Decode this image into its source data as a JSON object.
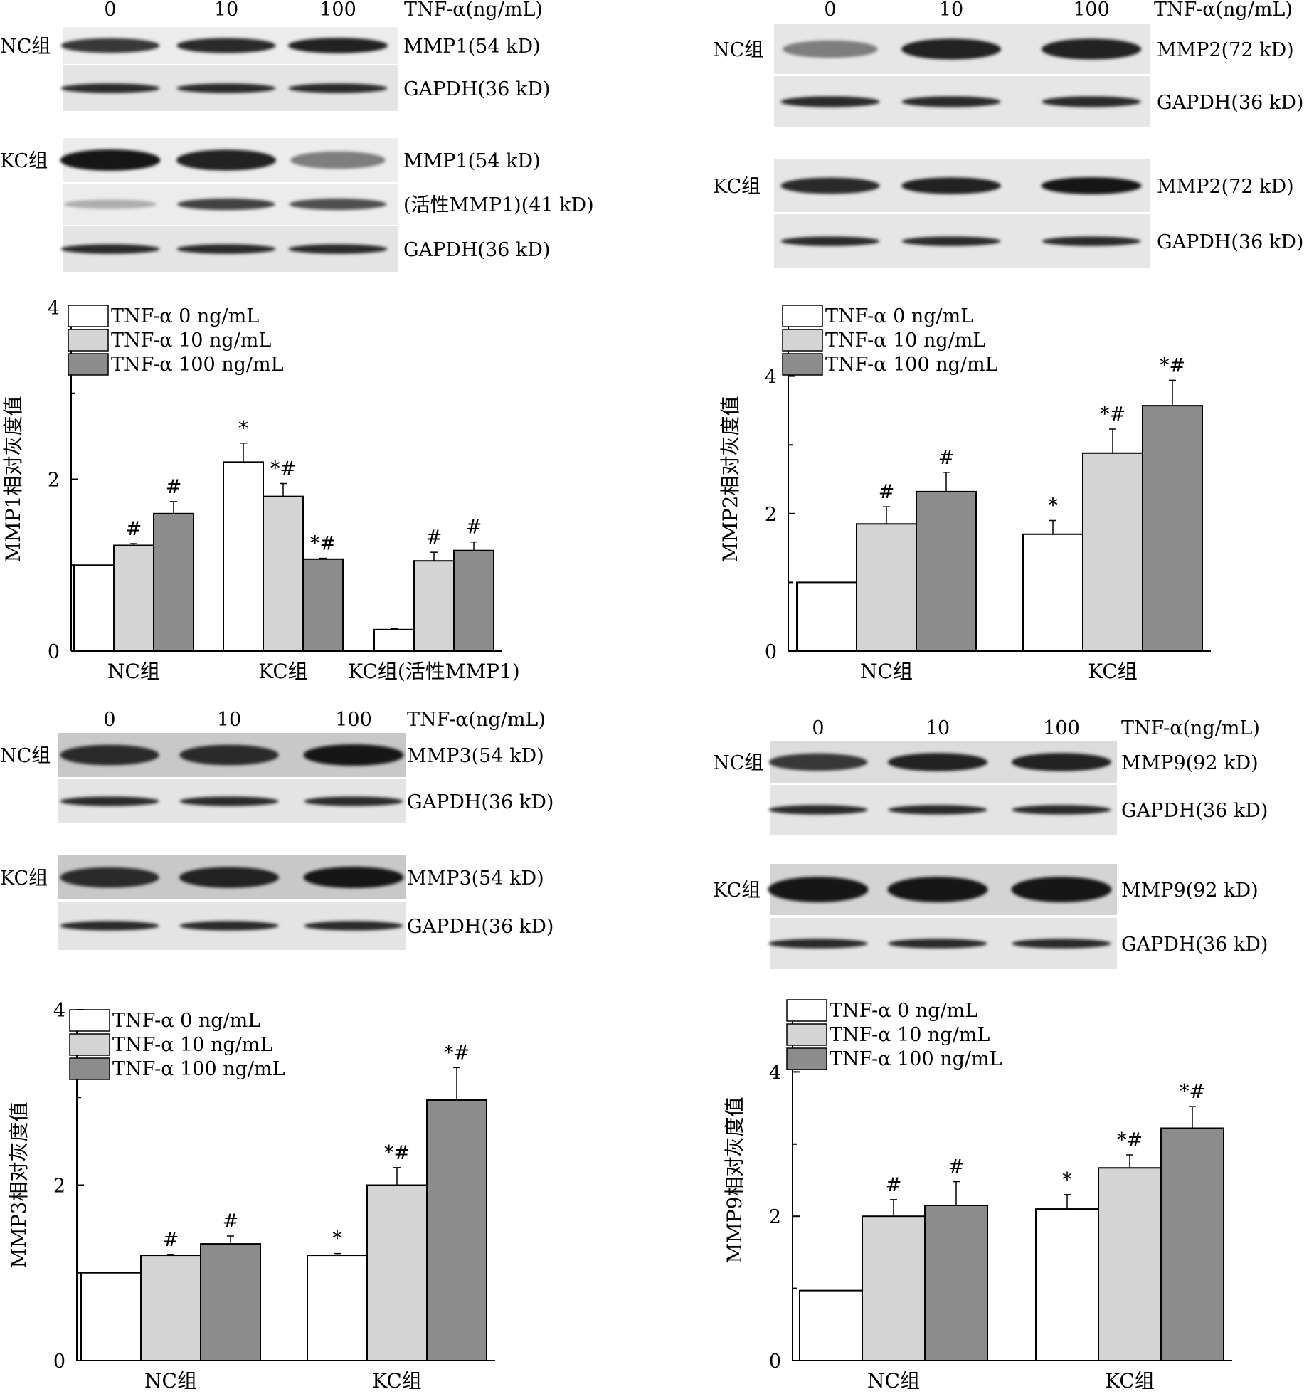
{
  "colors": {
    "tnf0": "#ffffff",
    "tnf10": "#d4d4d4",
    "tnf100": "#8c8c8c",
    "axis": "#000000"
  },
  "panels": [
    {
      "id": "mmp1",
      "lanes": [
        "0",
        "10",
        "100"
      ],
      "treatment_label": "TNF-α(ng/mL)",
      "blocks": [
        {
          "group": "NC组",
          "rows": [
            {
              "label": "MMP1(54 kD)",
              "intensity": [
                0.85,
                0.9,
                0.95
              ],
              "bg": "#ececec"
            },
            {
              "label": "GAPDH(36 kD)",
              "intensity": [
                0.9,
                0.9,
                0.9
              ],
              "bg": "#e4e4e4"
            }
          ]
        },
        {
          "group": "KC组",
          "rows": [
            {
              "label": "MMP1(54 kD)",
              "intensity": [
                1.0,
                0.95,
                0.55
              ],
              "bg": "#ececec"
            },
            {
              "label": "(活性MMP1)(41 kD)",
              "intensity": [
                0.35,
                0.8,
                0.75
              ],
              "bg": "#ececec"
            },
            {
              "label": "GAPDH(36 kD)",
              "intensity": [
                0.9,
                0.9,
                0.9
              ],
              "bg": "#e4e4e4"
            }
          ]
        }
      ]
    },
    {
      "id": "mmp2",
      "lanes": [
        "0",
        "10",
        "100"
      ],
      "treatment_label": "TNF-α(ng/mL)",
      "blocks": [
        {
          "group": "NC组",
          "rows": [
            {
              "label": "MMP2(72 kD)",
              "intensity": [
                0.55,
                0.95,
                0.95
              ],
              "bg": "#e6e6e6"
            },
            {
              "label": "GAPDH(36 kD)",
              "intensity": [
                0.9,
                0.9,
                0.9
              ],
              "bg": "#e6e6e6"
            }
          ]
        },
        {
          "group": "KC组",
          "rows": [
            {
              "label": "MMP2(72 kD)",
              "intensity": [
                0.9,
                0.95,
                1.0
              ],
              "bg": "#e6e6e6"
            },
            {
              "label": "GAPDH(36 kD)",
              "intensity": [
                0.9,
                0.9,
                0.9
              ],
              "bg": "#e6e6e6"
            }
          ]
        }
      ]
    },
    {
      "id": "mmp3",
      "lanes": [
        "0",
        "10",
        "100"
      ],
      "treatment_label": "TNF-α(ng/mL)",
      "blocks": [
        {
          "group": "NC组",
          "rows": [
            {
              "label": "MMP3(54 kD)",
              "intensity": [
                0.9,
                0.9,
                1.0
              ],
              "bg": "#c8c8c8"
            },
            {
              "label": "GAPDH(36 kD)",
              "intensity": [
                0.9,
                0.9,
                0.9
              ],
              "bg": "#e4e4e4"
            }
          ]
        },
        {
          "group": "KC组",
          "rows": [
            {
              "label": "MMP3(54 kD)",
              "intensity": [
                0.9,
                0.95,
                1.0
              ],
              "bg": "#c8c8c8"
            },
            {
              "label": "GAPDH(36 kD)",
              "intensity": [
                0.9,
                0.9,
                0.9
              ],
              "bg": "#e4e4e4"
            }
          ]
        }
      ]
    },
    {
      "id": "mmp9",
      "lanes": [
        "0",
        "10",
        "100"
      ],
      "treatment_label": "TNF-α(ng/mL)",
      "blocks": [
        {
          "group": "NC组",
          "rows": [
            {
              "label": "MMP9(92 kD)",
              "intensity": [
                0.85,
                0.95,
                0.95
              ],
              "bg": "#dcdcdc"
            },
            {
              "label": "GAPDH(36 kD)",
              "intensity": [
                0.9,
                0.9,
                0.9
              ],
              "bg": "#e4e4e4"
            }
          ]
        },
        {
          "group": "KC组",
          "rows": [
            {
              "label": "MMP9(92 kD)",
              "intensity": [
                1.0,
                1.0,
                1.0
              ],
              "bg": "#d4d4d4"
            },
            {
              "label": "GAPDH(36 kD)",
              "intensity": [
                0.9,
                0.9,
                0.9
              ],
              "bg": "#e4e4e4"
            }
          ]
        }
      ]
    }
  ],
  "chart_data": [
    {
      "type": "bar",
      "ylabel": "MMP1相对灰度值",
      "ylim": [
        0,
        4
      ],
      "yticks": [
        0,
        2,
        4
      ],
      "categories": [
        "NC组",
        "KC组",
        "KC组(活性MMP1)"
      ],
      "series": [
        {
          "name": "TNF-α 0 ng/mL",
          "values": [
            1.0,
            2.2,
            0.25
          ],
          "errors": [
            0,
            0.22,
            0.01
          ],
          "marks": [
            "",
            "*",
            ""
          ]
        },
        {
          "name": "TNF-α 10 ng/mL",
          "values": [
            1.23,
            1.8,
            1.05
          ],
          "errors": [
            0.02,
            0.15,
            0.1
          ],
          "marks": [
            "#",
            "*#",
            "#"
          ]
        },
        {
          "name": "TNF-α 100 ng/mL",
          "values": [
            1.6,
            1.07,
            1.17
          ],
          "errors": [
            0.14,
            0.01,
            0.1
          ],
          "marks": [
            "#",
            "*#",
            "#"
          ]
        }
      ],
      "legend": "top-left"
    },
    {
      "type": "bar",
      "ylabel": "MMP2相对灰度值",
      "ylim": [
        0,
        5
      ],
      "yticks": [
        0,
        2,
        4
      ],
      "categories": [
        "NC组",
        "KC组"
      ],
      "series": [
        {
          "name": "TNF-α 0 ng/mL",
          "values": [
            1.0,
            1.7
          ],
          "errors": [
            0,
            0.2
          ],
          "marks": [
            "",
            "*"
          ]
        },
        {
          "name": "TNF-α 10 ng/mL",
          "values": [
            1.85,
            2.88
          ],
          "errors": [
            0.25,
            0.35
          ],
          "marks": [
            "#",
            "*#"
          ]
        },
        {
          "name": "TNF-α 100 ng/mL",
          "values": [
            2.32,
            3.57
          ],
          "errors": [
            0.28,
            0.37
          ],
          "marks": [
            "#",
            "*#"
          ]
        }
      ],
      "legend": "top-left"
    },
    {
      "type": "bar",
      "ylabel": "MMP3相对灰度值",
      "ylim": [
        0,
        4
      ],
      "yticks": [
        0,
        2,
        4
      ],
      "categories": [
        "NC组",
        "KC组"
      ],
      "series": [
        {
          "name": "TNF-α 0 ng/mL",
          "values": [
            1.0,
            1.2
          ],
          "errors": [
            0,
            0.02
          ],
          "marks": [
            "",
            "*"
          ]
        },
        {
          "name": "TNF-α 10 ng/mL",
          "values": [
            1.2,
            2.0
          ],
          "errors": [
            0.01,
            0.2
          ],
          "marks": [
            "#",
            "*#"
          ]
        },
        {
          "name": "TNF-α 100 ng/mL",
          "values": [
            1.33,
            2.97
          ],
          "errors": [
            0.09,
            0.37
          ],
          "marks": [
            "#",
            "*#"
          ]
        }
      ],
      "legend": "top-left"
    },
    {
      "type": "bar",
      "ylabel": "MMP9相对灰度值",
      "ylim": [
        0,
        5
      ],
      "yticks": [
        0,
        2,
        4
      ],
      "categories": [
        "NC组",
        "KC组"
      ],
      "series": [
        {
          "name": "TNF-α 0 ng/mL",
          "values": [
            0.97,
            2.1
          ],
          "errors": [
            0,
            0.2
          ],
          "marks": [
            "",
            "*"
          ]
        },
        {
          "name": "TNF-α 10 ng/mL",
          "values": [
            2.0,
            2.67
          ],
          "errors": [
            0.23,
            0.18
          ],
          "marks": [
            "#",
            "*#"
          ]
        },
        {
          "name": "TNF-α 100 ng/mL",
          "values": [
            2.15,
            3.22
          ],
          "errors": [
            0.33,
            0.3
          ],
          "marks": [
            "#",
            "*#"
          ]
        }
      ],
      "legend": "top-left"
    }
  ]
}
